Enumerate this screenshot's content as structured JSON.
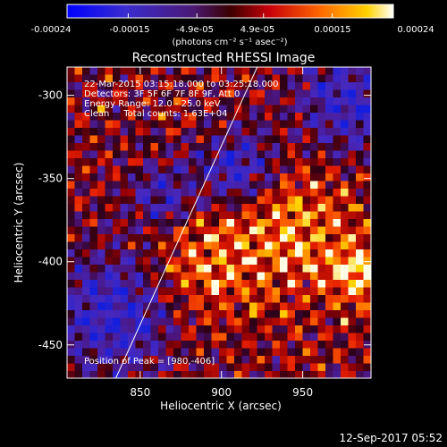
{
  "colorbar": {
    "tick_labels": [
      "-0.00024",
      "-0.00015",
      "-4.9e-05",
      "4.9e-05",
      "0.00015",
      "0.00024"
    ],
    "tick_values": [
      -0.00024,
      -0.00015,
      -4.9e-05,
      4.9e-05,
      0.00015,
      0.00024
    ],
    "range": [
      -0.00024,
      0.00024
    ],
    "unit_label": "(photons cm⁻² s⁻¹ asec⁻²)"
  },
  "chart_data": {
    "type": "heatmap",
    "title": "Reconstructed RHESSI Image",
    "xlabel": "Heliocentric X (arcsec)",
    "ylabel": "Heliocentric Y (arcsec)",
    "xlim": [
      805,
      992
    ],
    "ylim": [
      -470,
      -283
    ],
    "x_ticks": [
      850,
      900,
      950
    ],
    "y_ticks": [
      -300,
      -350,
      -400,
      -450
    ],
    "colormap": "red-temperature (blue-purple negative to yellow-white positive)",
    "limb_line": {
      "x": [
        835,
        922
      ],
      "y": [
        -470,
        -283
      ]
    },
    "annotations": {
      "time": "22-Mar-2015 03:15:18.000 to 03:25:18.000",
      "detectors": "Detectors: 3F 5F 6F 7F 8F 9F, Att 0",
      "energy": "Energy Range: 12.0 - 25.0 keV",
      "method": "Clean     Total counts: 1.63E+04",
      "peak": "Position of Peak = [980,-406]"
    },
    "peak": {
      "x": 980,
      "y": -406
    }
  },
  "footer": {
    "date": "12-Sep-2017 05:52"
  }
}
